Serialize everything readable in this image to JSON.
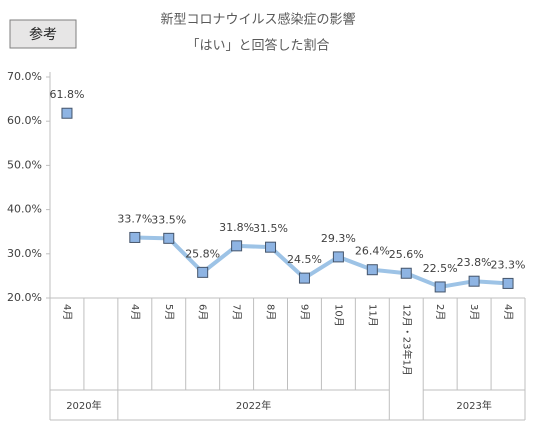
{
  "tag": "参考",
  "chart_data": {
    "type": "line",
    "title": "新型コロナウイルス感染症の影響",
    "subtitle": "「はい」と回答した割合",
    "categories": [
      "4月",
      null,
      "4月",
      "5月",
      "6月",
      "7月",
      "8月",
      "9月",
      "10月",
      "11月",
      "12月・23年1月",
      "2月",
      "3月",
      "4月"
    ],
    "x_groups": [
      "2020年",
      "2022年",
      "2023年"
    ],
    "series": [
      {
        "name": "「はい」と回答した割合",
        "color": "#9dc3e6",
        "marker_color": "#8eb4e3",
        "values": [
          61.8,
          null,
          33.7,
          33.5,
          25.8,
          31.8,
          31.5,
          24.5,
          29.3,
          26.4,
          25.6,
          22.5,
          23.8,
          23.3
        ],
        "value_labels": [
          "61.8%",
          null,
          "33.7%",
          "33.5%",
          "25.8%",
          "31.8%",
          "31.5%",
          "24.5%",
          "29.3%",
          "26.4%",
          "25.6%",
          "22.5%",
          "23.8%",
          "23.3%"
        ]
      }
    ],
    "ylim": [
      20,
      70
    ],
    "yticks": [
      {
        "value": 20,
        "label": "20.0%"
      },
      {
        "value": 30,
        "label": "30.0%"
      },
      {
        "value": 40,
        "label": "40.0%"
      },
      {
        "value": 50,
        "label": "50.0%"
      },
      {
        "value": 60,
        "label": "60.0%"
      },
      {
        "value": 70,
        "label": "70.0%"
      }
    ],
    "grid": false
  }
}
